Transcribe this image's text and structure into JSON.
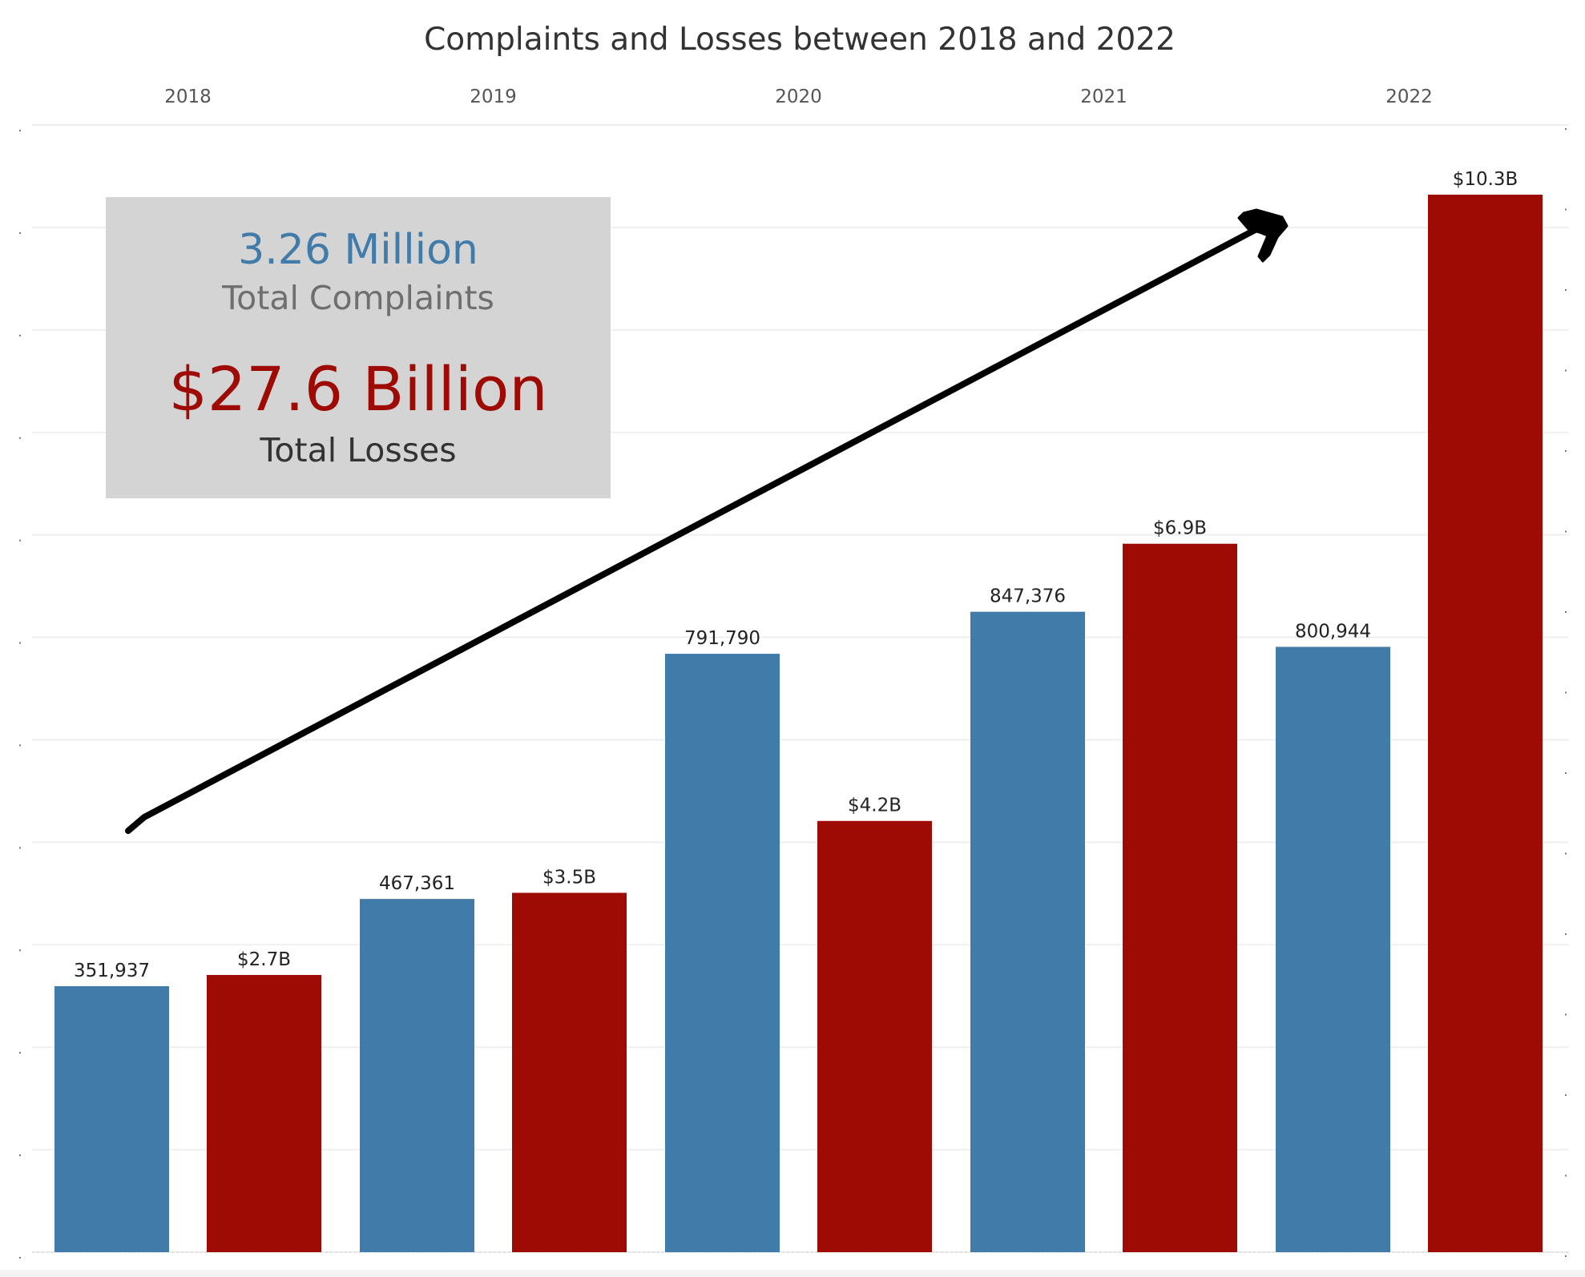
{
  "chart_data": {
    "type": "bar",
    "title": "Complaints and Losses between 2018 and 2022",
    "categories": [
      "2018",
      "2019",
      "2020",
      "2021",
      "2022"
    ],
    "series": [
      {
        "metric": "complaints",
        "values": [
          351937,
          467361,
          791790,
          847376,
          800944
        ],
        "labels": [
          "351,937",
          "467,361",
          "791,790",
          "847,376",
          "800,944"
        ],
        "color": "#417BAA"
      },
      {
        "metric": "losses",
        "values": [
          2.7,
          3.5,
          4.2,
          6.9,
          10.3
        ],
        "labels": [
          "$2.7B",
          "$3.5B",
          "$4.2B",
          "$6.9B",
          "$10.3B"
        ],
        "color": "#9E0B05"
      }
    ],
    "grid": true,
    "annotation": "upward trend arrow"
  },
  "summary": {
    "complaints_value": "3.26 Million",
    "complaints_label": "Total Complaints",
    "losses_value": "$27.6 Billion",
    "losses_label": "Total Losses",
    "box_color": "#D4D4D4"
  }
}
